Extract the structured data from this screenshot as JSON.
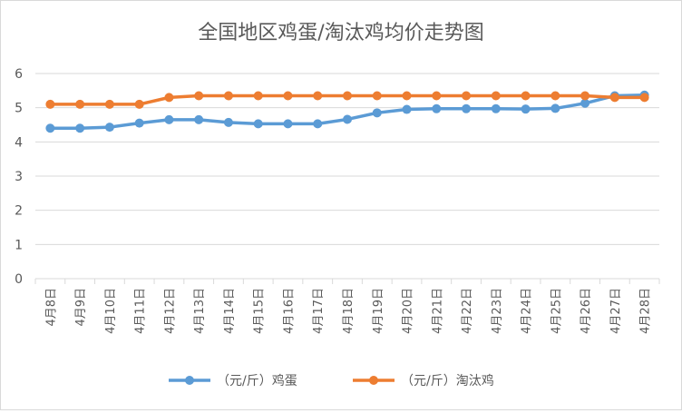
{
  "chart_data": {
    "type": "line",
    "title": "全国地区鸡蛋/淘汰鸡均价走势图",
    "categories": [
      "4月8日",
      "4月9日",
      "4月10日",
      "4月11日",
      "4月12日",
      "4月13日",
      "4月14日",
      "4月15日",
      "4月16日",
      "4月17日",
      "4月18日",
      "4月19日",
      "4月20日",
      "4月21日",
      "4月22日",
      "4月23日",
      "4月24日",
      "4月25日",
      "4月26日",
      "4月27日",
      "4月28日"
    ],
    "series": [
      {
        "name": "（元/斤）鸡蛋",
        "color": "#5b9bd5",
        "values": [
          4.4,
          4.4,
          4.43,
          4.55,
          4.65,
          4.65,
          4.57,
          4.53,
          4.53,
          4.53,
          4.66,
          4.85,
          4.95,
          4.97,
          4.97,
          4.97,
          4.96,
          4.98,
          5.13,
          5.35,
          5.37
        ]
      },
      {
        "name": "（元/斤）淘汰鸡",
        "color": "#ed7d31",
        "values": [
          5.1,
          5.1,
          5.1,
          5.1,
          5.3,
          5.35,
          5.35,
          5.35,
          5.35,
          5.35,
          5.35,
          5.35,
          5.35,
          5.35,
          5.35,
          5.35,
          5.35,
          5.35,
          5.35,
          5.3,
          5.3
        ]
      }
    ],
    "ylim": [
      0,
      6
    ],
    "yticks": [
      0,
      1,
      2,
      3,
      4,
      5,
      6
    ],
    "xlabel": "",
    "ylabel": "",
    "grid": true,
    "legend": "bottom"
  }
}
